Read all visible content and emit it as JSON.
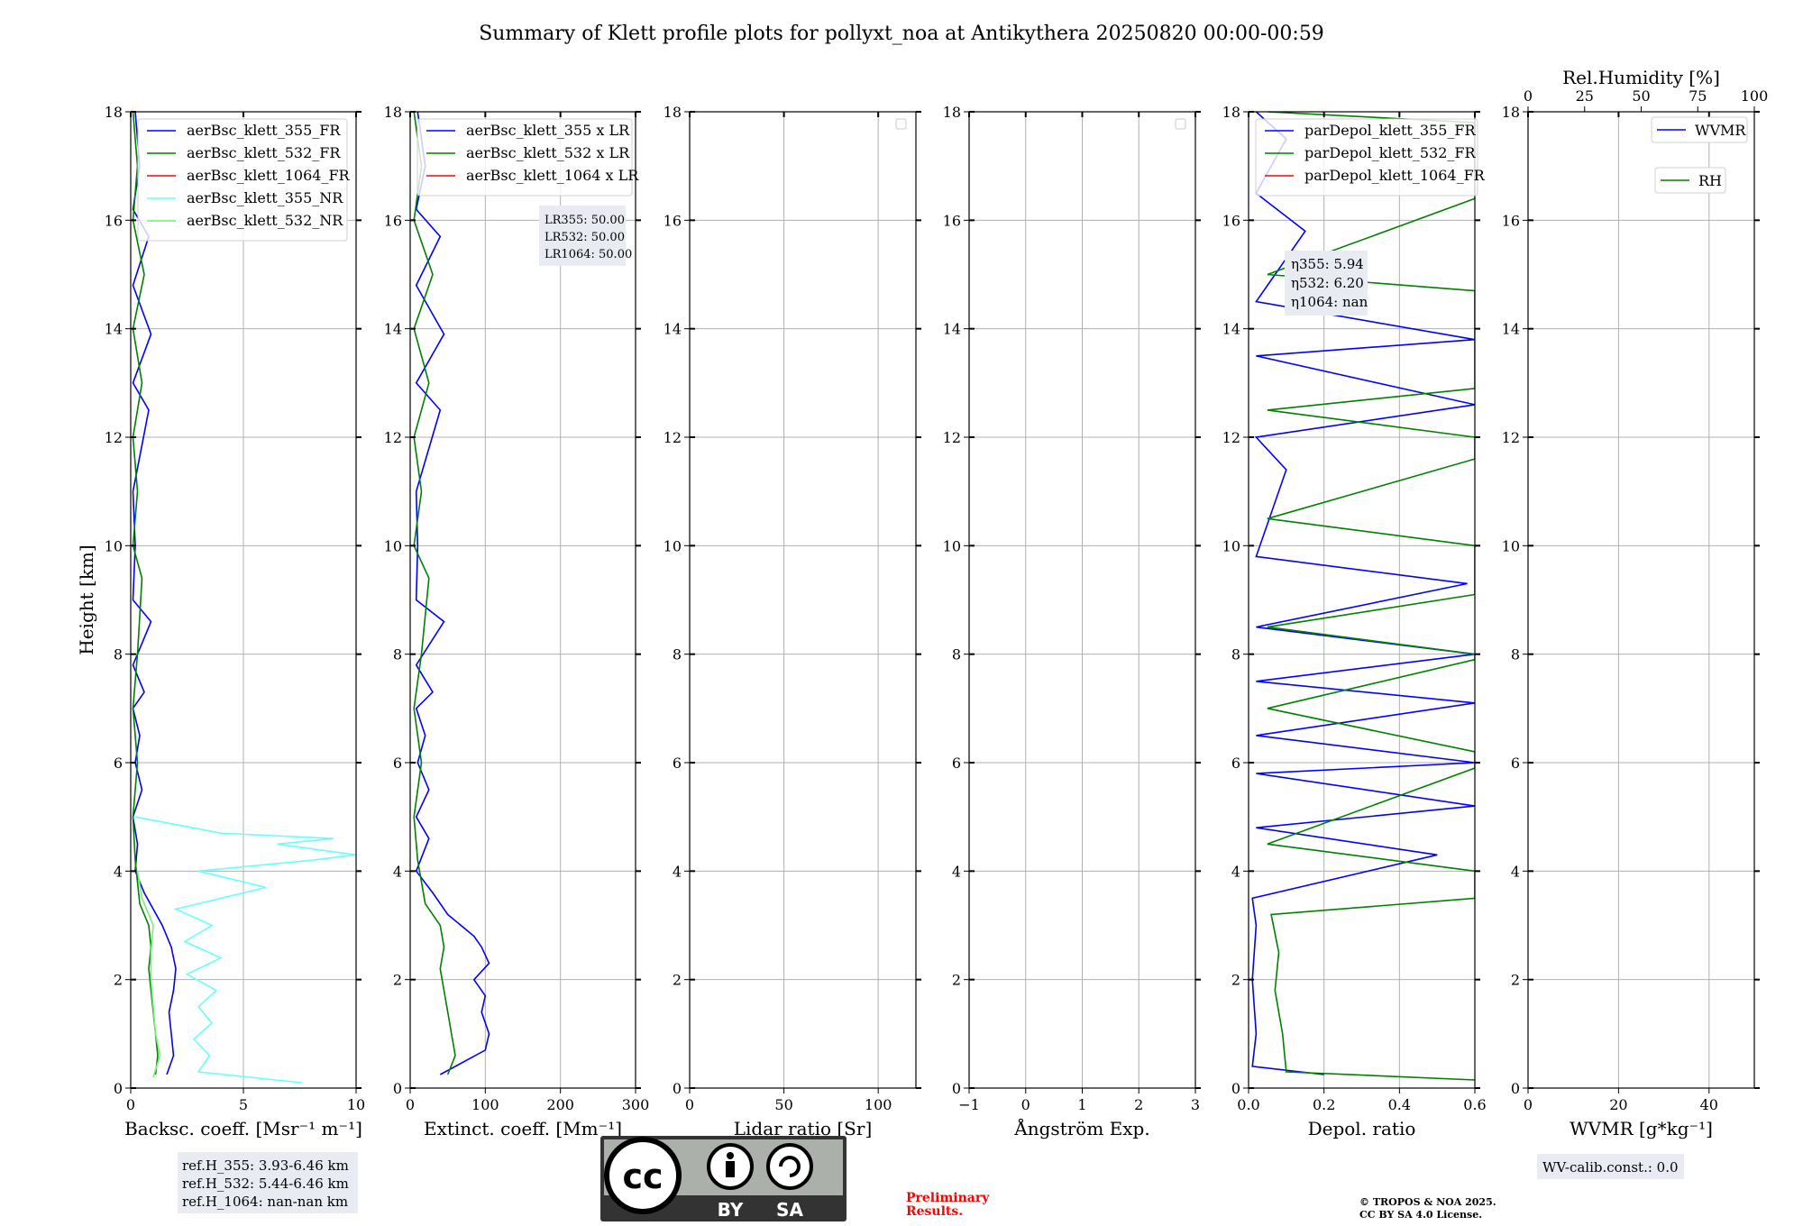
{
  "figure_title": "Summary of Klett profile plots for pollyxt_noa at Antikythera 20250820 00:00-00:59",
  "colors": {
    "b355": "#0000ff",
    "b532": "#008000",
    "b1064": "#ff0000",
    "nr355": "#66ffff",
    "nr532": "#77ee77",
    "grid": "#b0b0b0",
    "box": "#e8ebf2"
  },
  "chart_data": [
    {
      "type": "line",
      "name": "backscatter",
      "xlabel": "Backsc. coeff. [Msr⁻¹ m⁻¹]",
      "ylabel": "Height [km]",
      "xlim": [
        0,
        10
      ],
      "ylim": [
        0,
        18
      ],
      "xticks": [
        0,
        5,
        10
      ],
      "yticks": [
        0,
        2,
        4,
        6,
        8,
        10,
        12,
        14,
        16,
        18
      ],
      "legend": [
        "aerBsc_klett_355_FR",
        "aerBsc_klett_532_FR",
        "aerBsc_klett_1064_FR",
        "aerBsc_klett_355_NR",
        "aerBsc_klett_532_NR"
      ],
      "series": [
        {
          "name": "aerBsc_klett_355_FR",
          "color": "#0000ff",
          "points": [
            [
              1.6,
              0.25
            ],
            [
              1.9,
              0.6
            ],
            [
              1.8,
              1.0
            ],
            [
              1.7,
              1.4
            ],
            [
              1.9,
              1.8
            ],
            [
              2.0,
              2.2
            ],
            [
              1.8,
              2.6
            ],
            [
              1.4,
              3.0
            ],
            [
              1.0,
              3.3
            ],
            [
              0.6,
              3.6
            ],
            [
              0.2,
              4.0
            ],
            [
              0.3,
              4.5
            ],
            [
              0.1,
              5.0
            ],
            [
              0.5,
              5.5
            ],
            [
              0.2,
              6.0
            ],
            [
              0.4,
              6.5
            ],
            [
              0.1,
              7.0
            ],
            [
              0.6,
              7.3
            ],
            [
              0.1,
              7.8
            ],
            [
              0.9,
              8.6
            ],
            [
              0.1,
              9.0
            ],
            [
              0.2,
              10.0
            ],
            [
              0.1,
              11.0
            ],
            [
              0.8,
              12.5
            ],
            [
              0.1,
              13.0
            ],
            [
              0.9,
              13.9
            ],
            [
              0.1,
              14.8
            ],
            [
              0.8,
              15.7
            ],
            [
              0.1,
              16.2
            ],
            [
              0.4,
              17.0
            ],
            [
              0.2,
              18.0
            ]
          ]
        },
        {
          "name": "aerBsc_klett_532_FR",
          "color": "#008000",
          "points": [
            [
              1.1,
              0.25
            ],
            [
              1.2,
              0.6
            ],
            [
              1.1,
              1.0
            ],
            [
              1.0,
              1.4
            ],
            [
              0.9,
              1.8
            ],
            [
              0.8,
              2.2
            ],
            [
              0.9,
              2.6
            ],
            [
              0.8,
              3.0
            ],
            [
              0.4,
              3.4
            ],
            [
              0.3,
              3.8
            ],
            [
              0.2,
              4.2
            ],
            [
              0.1,
              5.0
            ],
            [
              0.3,
              6.0
            ],
            [
              0.1,
              7.0
            ],
            [
              0.3,
              8.0
            ],
            [
              0.5,
              9.4
            ],
            [
              0.1,
              10.0
            ],
            [
              0.3,
              11.0
            ],
            [
              0.1,
              12.0
            ],
            [
              0.5,
              13.0
            ],
            [
              0.1,
              14.0
            ],
            [
              0.6,
              15.0
            ],
            [
              0.1,
              16.0
            ],
            [
              0.3,
              17.0
            ],
            [
              0.1,
              18.0
            ]
          ]
        },
        {
          "name": "aerBsc_klett_355_NR",
          "color": "#66ffff",
          "points": [
            [
              7.6,
              0.1
            ],
            [
              3.0,
              0.3
            ],
            [
              3.5,
              0.6
            ],
            [
              2.8,
              0.9
            ],
            [
              3.6,
              1.2
            ],
            [
              3.0,
              1.5
            ],
            [
              3.8,
              1.8
            ],
            [
              2.5,
              2.1
            ],
            [
              4.0,
              2.4
            ],
            [
              2.4,
              2.7
            ],
            [
              3.6,
              3.0
            ],
            [
              2.0,
              3.3
            ],
            [
              6.0,
              3.7
            ],
            [
              3.0,
              4.0
            ],
            [
              8.0,
              4.2
            ],
            [
              10.0,
              4.3
            ],
            [
              6.5,
              4.5
            ],
            [
              9.0,
              4.6
            ],
            [
              4.0,
              4.7
            ],
            [
              0.2,
              5.0
            ]
          ]
        },
        {
          "name": "aerBsc_klett_532_NR",
          "color": "#77ee77",
          "points": [
            [
              1.0,
              0.2
            ],
            [
              1.3,
              0.6
            ],
            [
              1.1,
              1.0
            ],
            [
              1.0,
              1.5
            ],
            [
              0.9,
              2.0
            ],
            [
              0.9,
              2.5
            ],
            [
              1.0,
              3.0
            ],
            [
              0.5,
              3.5
            ],
            [
              0.3,
              4.0
            ]
          ]
        }
      ]
    },
    {
      "type": "line",
      "name": "extinction",
      "xlabel": "Extinct. coeff. [Mm⁻¹]",
      "xlim": [
        0,
        300
      ],
      "ylim": [
        0,
        18
      ],
      "xticks": [
        0,
        100,
        200,
        300
      ],
      "yticks": [
        0,
        2,
        4,
        6,
        8,
        10,
        12,
        14,
        16,
        18
      ],
      "legend": [
        "aerBsc_klett_355 x LR",
        "aerBsc_klett_532 x LR",
        "aerBsc_klett_1064 x LR"
      ],
      "annotation": [
        "LR355: 50.00",
        "LR532: 50.00",
        "LR1064: 50.00"
      ],
      "series": [
        {
          "name": "aerBsc_klett_355 x LR",
          "color": "#0000ff",
          "points": [
            [
              40,
              0.25
            ],
            [
              100,
              0.7
            ],
            [
              105,
              1.0
            ],
            [
              95,
              1.4
            ],
            [
              100,
              1.7
            ],
            [
              85,
              2.0
            ],
            [
              105,
              2.3
            ],
            [
              95,
              2.6
            ],
            [
              85,
              2.8
            ],
            [
              50,
              3.2
            ],
            [
              30,
              3.6
            ],
            [
              8,
              4.0
            ],
            [
              25,
              4.6
            ],
            [
              8,
              5.0
            ],
            [
              25,
              5.5
            ],
            [
              10,
              6.0
            ],
            [
              20,
              6.5
            ],
            [
              8,
              7.0
            ],
            [
              30,
              7.3
            ],
            [
              8,
              7.8
            ],
            [
              45,
              8.6
            ],
            [
              8,
              9.0
            ],
            [
              10,
              10.0
            ],
            [
              8,
              11.0
            ],
            [
              40,
              12.5
            ],
            [
              8,
              13.0
            ],
            [
              45,
              13.9
            ],
            [
              8,
              14.8
            ],
            [
              40,
              15.7
            ],
            [
              8,
              16.2
            ],
            [
              20,
              17.0
            ],
            [
              10,
              18.0
            ]
          ]
        },
        {
          "name": "aerBsc_klett_532 x LR",
          "color": "#008000",
          "points": [
            [
              50,
              0.25
            ],
            [
              60,
              0.6
            ],
            [
              55,
              1.0
            ],
            [
              50,
              1.4
            ],
            [
              45,
              1.8
            ],
            [
              40,
              2.2
            ],
            [
              45,
              2.6
            ],
            [
              40,
              3.0
            ],
            [
              20,
              3.4
            ],
            [
              15,
              3.8
            ],
            [
              10,
              4.2
            ],
            [
              5,
              5.0
            ],
            [
              15,
              6.0
            ],
            [
              5,
              7.0
            ],
            [
              15,
              8.0
            ],
            [
              25,
              9.4
            ],
            [
              5,
              10.0
            ],
            [
              15,
              11.0
            ],
            [
              5,
              12.0
            ],
            [
              25,
              13.0
            ],
            [
              5,
              14.0
            ],
            [
              30,
              15.0
            ],
            [
              5,
              16.0
            ],
            [
              15,
              17.0
            ],
            [
              5,
              18.0
            ]
          ]
        }
      ]
    },
    {
      "type": "line",
      "name": "lidar-ratio",
      "xlabel": "Lidar ratio [Sr]",
      "xlim": [
        0,
        120
      ],
      "ylim": [
        0,
        18
      ],
      "xticks": [
        0,
        50,
        100
      ],
      "yticks": [
        0,
        2,
        4,
        6,
        8,
        10,
        12,
        14,
        16,
        18
      ],
      "series": []
    },
    {
      "type": "line",
      "name": "angstrom",
      "xlabel": "Ångström Exp.",
      "xlim": [
        -1,
        3
      ],
      "ylim": [
        0,
        18
      ],
      "xticks": [
        -1,
        0,
        1,
        2,
        3
      ],
      "yticks": [
        0,
        2,
        4,
        6,
        8,
        10,
        12,
        14,
        16,
        18
      ],
      "series": []
    },
    {
      "type": "line",
      "name": "depolarization",
      "xlabel": "Depol. ratio",
      "xlim": [
        0,
        0.6
      ],
      "ylim": [
        0,
        18
      ],
      "xticks": [
        0.0,
        0.2,
        0.4,
        0.6
      ],
      "yticks": [
        0,
        2,
        4,
        6,
        8,
        10,
        12,
        14,
        16,
        18
      ],
      "legend": [
        "parDepol_klett_355_FR",
        "parDepol_klett_532_FR",
        "parDepol_klett_1064_FR"
      ],
      "annotation": [
        "η355: 5.94",
        "η532: 6.20",
        "η1064: nan"
      ],
      "series": [
        {
          "name": "parDepol_klett_355_FR",
          "color": "#0000ff",
          "points": [
            [
              0.2,
              0.25
            ],
            [
              0.01,
              0.4
            ],
            [
              0.02,
              1.0
            ],
            [
              0.01,
              2.0
            ],
            [
              0.02,
              3.0
            ],
            [
              0.01,
              3.5
            ],
            [
              0.5,
              4.3
            ],
            [
              0.02,
              4.8
            ],
            [
              0.6,
              5.2
            ],
            [
              0.02,
              5.8
            ],
            [
              0.6,
              6.0
            ],
            [
              0.02,
              6.5
            ],
            [
              0.6,
              7.1
            ],
            [
              0.02,
              7.5
            ],
            [
              0.6,
              8.0
            ],
            [
              0.02,
              8.5
            ],
            [
              0.58,
              9.3
            ],
            [
              0.02,
              9.8
            ],
            [
              0.1,
              11.4
            ],
            [
              0.02,
              12.0
            ],
            [
              0.6,
              12.6
            ],
            [
              0.02,
              13.5
            ],
            [
              0.6,
              13.8
            ],
            [
              0.02,
              14.5
            ],
            [
              0.15,
              15.8
            ],
            [
              0.02,
              16.5
            ],
            [
              0.1,
              17.5
            ],
            [
              0.02,
              18.0
            ]
          ]
        },
        {
          "name": "parDepol_klett_532_FR",
          "color": "#008000",
          "points": [
            [
              0.6,
              0.15
            ],
            [
              0.1,
              0.3
            ],
            [
              0.09,
              1.0
            ],
            [
              0.07,
              1.8
            ],
            [
              0.08,
              2.5
            ],
            [
              0.06,
              3.2
            ],
            [
              0.6,
              3.5
            ],
            [
              0.6,
              3.8
            ],
            [
              0.6,
              4.0
            ],
            [
              0.05,
              4.5
            ],
            [
              0.6,
              5.9
            ],
            [
              0.6,
              6.2
            ],
            [
              0.05,
              7.0
            ],
            [
              0.6,
              7.9
            ],
            [
              0.6,
              8.0
            ],
            [
              0.05,
              8.5
            ],
            [
              0.6,
              9.1
            ],
            [
              0.6,
              10.0
            ],
            [
              0.05,
              10.5
            ],
            [
              0.6,
              11.6
            ],
            [
              0.6,
              12.0
            ],
            [
              0.05,
              12.5
            ],
            [
              0.6,
              12.9
            ],
            [
              0.6,
              14.0
            ],
            [
              0.6,
              14.7
            ],
            [
              0.05,
              15.0
            ],
            [
              0.6,
              16.4
            ],
            [
              0.6,
              17.8
            ],
            [
              0.05,
              18.0
            ]
          ]
        }
      ]
    },
    {
      "type": "line",
      "name": "water-vapor",
      "xlabel": "WVMR [g*kg⁻¹]",
      "top_xlabel": "Rel.Humidity [%]",
      "xlim": [
        0,
        50
      ],
      "ylim": [
        0,
        18
      ],
      "xticks": [
        0,
        20,
        40
      ],
      "top_xticks": [
        0,
        25,
        50,
        75,
        100
      ],
      "yticks": [
        0,
        2,
        4,
        6,
        8,
        10,
        12,
        14,
        16,
        18
      ],
      "legend": [
        "WVMR",
        "RH"
      ],
      "annotation": [
        "WV-calib.const.: 0.0"
      ],
      "series": []
    }
  ],
  "reference_heights": [
    "ref.H_355: 3.93-6.46 km",
    "ref.H_532: 5.44-6.46 km",
    "ref.H_1064: nan-nan km"
  ],
  "license_badge": {
    "cc": "cc",
    "by": "BY",
    "sa": "SA"
  },
  "preliminary": [
    "Preliminary",
    "Results."
  ],
  "copyright": [
    "© TROPOS & NOA 2025.",
    "CC BY SA 4.0 License."
  ]
}
